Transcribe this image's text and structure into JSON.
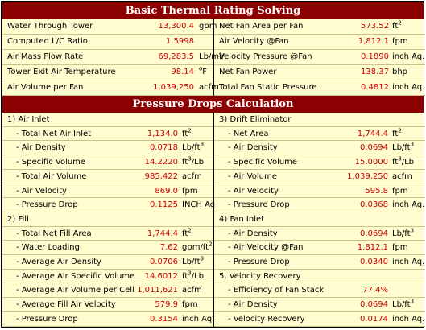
{
  "basic": {
    "title": "Basic Thermal Rating Solving",
    "left": [
      {
        "label": "Water Through Tower",
        "value": "13,300.4",
        "unit": "gpm",
        "sup": ""
      },
      {
        "label": "Computed L/C Ratio",
        "value": "1.5998",
        "unit": "",
        "sup": ""
      },
      {
        "label": "Air Mass Flow Rate",
        "value": "69,283.5",
        "unit": "Lb/min",
        "sup": ""
      },
      {
        "label": "Tower Exit Air Temperature",
        "value": "98.14",
        "unit": "F",
        "sup": "o",
        "supFirst": true
      },
      {
        "label": "Air Volume per Fan",
        "value": "1,039,250",
        "unit": "acfm",
        "sup": ""
      }
    ],
    "right": [
      {
        "label": "Net Fan Area per Fan",
        "value": "573.52",
        "unit": "ft",
        "sup": "2"
      },
      {
        "label": "Air Velocity @Fan",
        "value": "1,812.1",
        "unit": "fpm",
        "sup": ""
      },
      {
        "label": "Velocity Pressure @Fan",
        "value": "0.1890",
        "unit": "inch Aq.",
        "sup": ""
      },
      {
        "label": "Net Fan Power",
        "value": "138.37",
        "unit": "bhp",
        "sup": ""
      },
      {
        "label": "Total Fan Static Pressure",
        "value": "0.4812",
        "unit": "inch Aq.",
        "sup": ""
      }
    ]
  },
  "pressure": {
    "title": "Pressure Drops Calculation",
    "left": [
      {
        "label": "1) Air Inlet",
        "value": "",
        "unit": "",
        "sup": "",
        "heading": true
      },
      {
        "label": "- Total Net Air Inlet",
        "value": "1,134.0",
        "unit": "ft",
        "sup": "2"
      },
      {
        "label": "- Air Density",
        "value": "0.0718",
        "unit": "Lb/ft",
        "sup": "3"
      },
      {
        "label": "- Specific Volume",
        "value": "14.2220",
        "unit": "ft",
        "sup": "3",
        "after": "/Lb"
      },
      {
        "label": "- Total Air Volume",
        "value": "985,422",
        "unit": "acfm",
        "sup": ""
      },
      {
        "label": "- Air Velocity",
        "value": "869.0",
        "unit": "fpm",
        "sup": ""
      },
      {
        "label": "- Pressure Drop",
        "value": "0.1125",
        "unit": "INCH Aq",
        "sup": ""
      },
      {
        "label": "2) Fill",
        "value": "",
        "unit": "",
        "sup": "",
        "heading": true
      },
      {
        "label": "- Total Net Fill Area",
        "value": "1,744.4",
        "unit": "ft",
        "sup": "2"
      },
      {
        "label": "- Water Loading",
        "value": "7.62",
        "unit": "gpm/ft",
        "sup": "2"
      },
      {
        "label": "- Average Air Density",
        "value": "0.0706",
        "unit": "Lb/ft",
        "sup": "3"
      },
      {
        "label": "- Average Air Specific Volume",
        "value": "14.6012",
        "unit": "ft",
        "sup": "3",
        "after": "/Lb"
      },
      {
        "label": "- Average Air Volume per Cell",
        "value": "1,011,621",
        "unit": "acfm",
        "sup": ""
      },
      {
        "label": "- Average Fill Air Velocity",
        "value": "579.9",
        "unit": "fpm",
        "sup": ""
      },
      {
        "label": "- Pressure Drop",
        "value": "0.3154",
        "unit": "inch Aq.",
        "sup": ""
      }
    ],
    "right": [
      {
        "label": "3) Drift Eliminator",
        "value": "",
        "unit": "",
        "sup": "",
        "heading": true
      },
      {
        "label": "- Net Area",
        "value": "1,744.4",
        "unit": "ft",
        "sup": "2"
      },
      {
        "label": "- Air Density",
        "value": "0.0694",
        "unit": "Lb/ft",
        "sup": "3"
      },
      {
        "label": "- Specific Volume",
        "value": "15.0000",
        "unit": "ft",
        "sup": "3",
        "after": "/Lb"
      },
      {
        "label": "- Air Volume",
        "value": "1,039,250",
        "unit": "acfm",
        "sup": ""
      },
      {
        "label": "- Air Velocity",
        "value": "595.8",
        "unit": "fpm",
        "sup": ""
      },
      {
        "label": "- Pressure Drop",
        "value": "0.0368",
        "unit": "inch Aq.",
        "sup": ""
      },
      {
        "label": "4) Fan Inlet",
        "value": "",
        "unit": "",
        "sup": "",
        "heading": true
      },
      {
        "label": "- Air Density",
        "value": "0.0694",
        "unit": "Lb/ft",
        "sup": "3"
      },
      {
        "label": "- Air Velocity @Fan",
        "value": "1,812.1",
        "unit": "fpm",
        "sup": ""
      },
      {
        "label": "- Pressure Drop",
        "value": "0.0340",
        "unit": "inch Aq.",
        "sup": ""
      },
      {
        "label": "5. Velocity Recovery",
        "value": "",
        "unit": "",
        "sup": "",
        "heading": true
      },
      {
        "label": "- Efficiency of Fan Stack",
        "value": "77.4%",
        "unit": "",
        "sup": ""
      },
      {
        "label": "- Air Density",
        "value": "0.0694",
        "unit": "Lb/ft",
        "sup": "3"
      },
      {
        "label": "- Velocity Recovery",
        "value": "0.0174",
        "unit": "inch Aq.",
        "sup": ""
      }
    ]
  },
  "colors": {
    "title_bg": "#8b0000",
    "panel_bg": "#fffccf",
    "value": "#cc0000"
  }
}
